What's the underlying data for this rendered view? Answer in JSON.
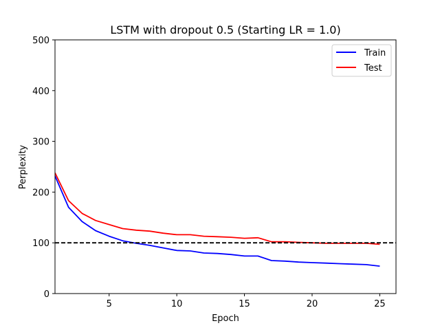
{
  "chart_data": {
    "type": "line",
    "title": "LSTM with dropout 0.5 (Starting LR = 1.0)",
    "xlabel": "Epoch",
    "ylabel": "Perplexity",
    "xlim": [
      1,
      26.2
    ],
    "ylim": [
      0,
      500
    ],
    "xticks": [
      5,
      10,
      15,
      20,
      25
    ],
    "yticks": [
      0,
      100,
      200,
      300,
      400,
      500
    ],
    "grid": false,
    "legend_position": "top-right",
    "x": [
      1,
      2,
      3,
      4,
      5,
      6,
      7,
      8,
      9,
      10,
      11,
      12,
      13,
      14,
      15,
      16,
      17,
      18,
      19,
      20,
      21,
      22,
      23,
      24,
      25
    ],
    "series": [
      {
        "name": "Train",
        "color": "#0000ff",
        "values": [
          232,
          170,
          142,
          124,
          113,
          104,
          99,
          95,
          90,
          85,
          84,
          80,
          79,
          77,
          74,
          74,
          65,
          64,
          62,
          61,
          60,
          59,
          58,
          57,
          54
        ]
      },
      {
        "name": "Test",
        "color": "#ff0000",
        "values": [
          238,
          183,
          158,
          144,
          136,
          128,
          125,
          123,
          119,
          116,
          116,
          113,
          112,
          111,
          109,
          110,
          102,
          102,
          101,
          100,
          99,
          99,
          99,
          99,
          97
        ]
      }
    ],
    "reference_line": {
      "y": 100,
      "color": "#000000",
      "style": "dashed"
    }
  }
}
